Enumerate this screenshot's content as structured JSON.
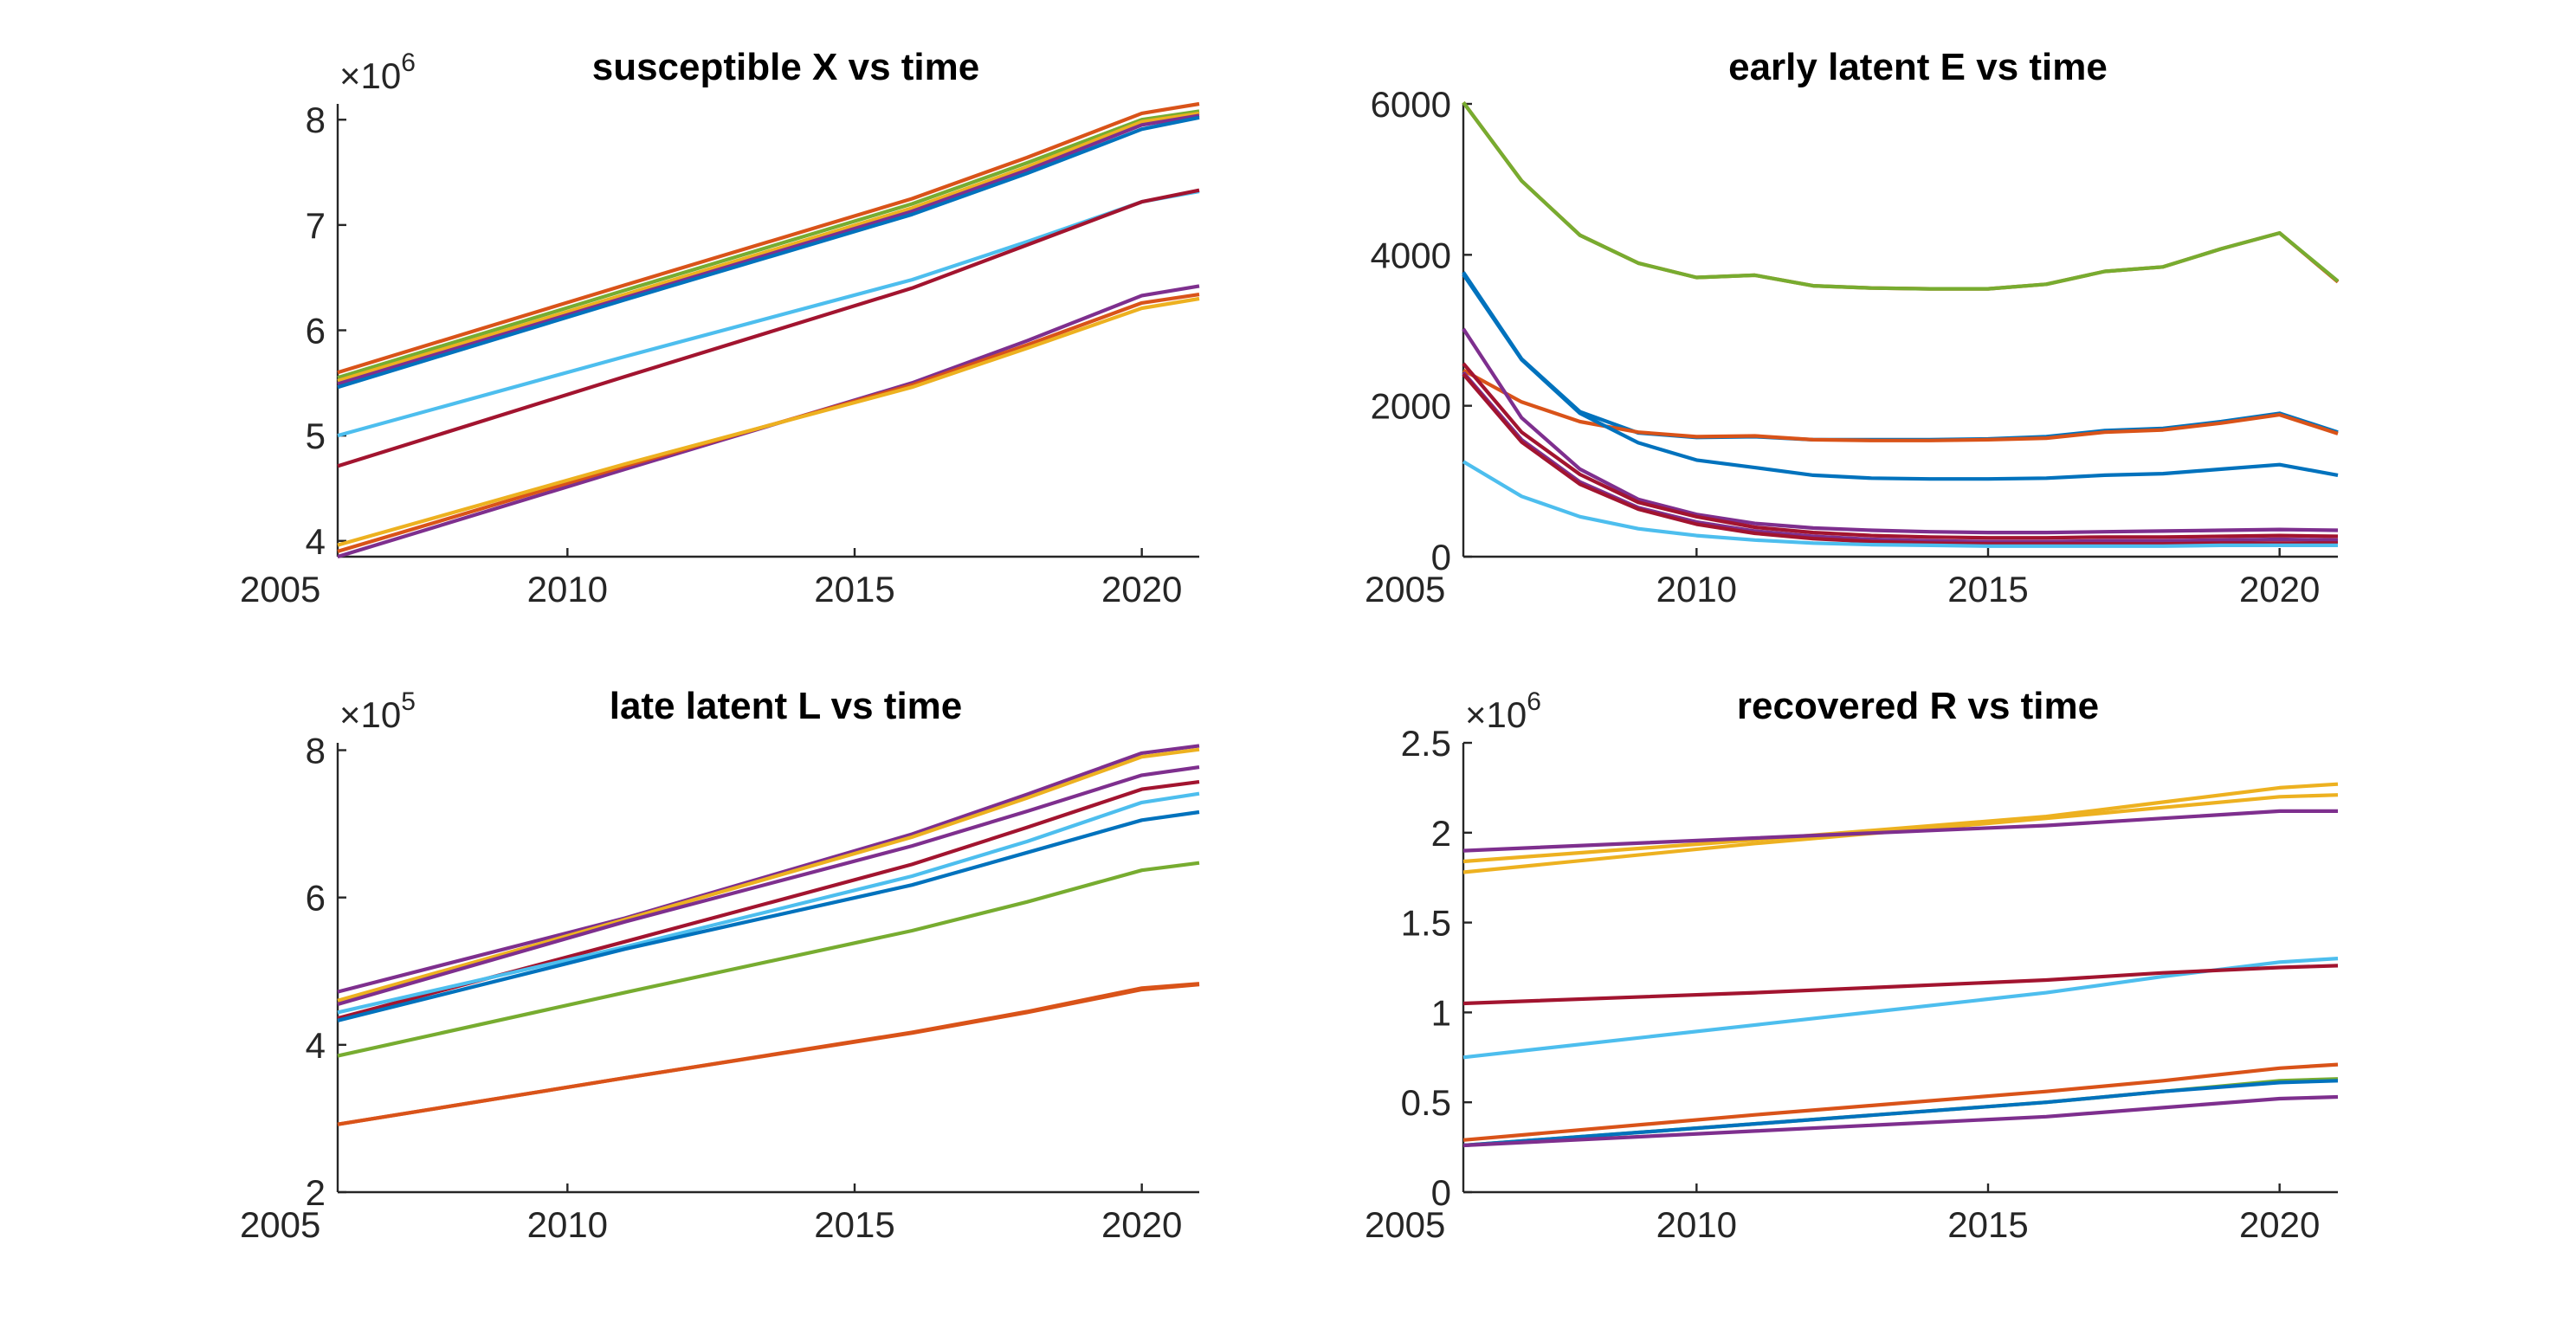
{
  "colors": {
    "blue": "#0072BD",
    "orange": "#D95319",
    "yellow": "#EDB120",
    "purple": "#7E2F8E",
    "green": "#77AC30",
    "cyan": "#4DBEEE",
    "maroon": "#A2142F",
    "axis": "#262626"
  },
  "chart_data": [
    {
      "type": "line",
      "title": "susceptible X vs time",
      "xlabel": "",
      "ylabel": "",
      "exponent_label": "×10",
      "exponent_power": "6",
      "xlim": [
        2006,
        2021
      ],
      "ylim": [
        3.85,
        8.15
      ],
      "xticks": [
        2005,
        2010,
        2015,
        2020
      ],
      "yticks": [
        4,
        5,
        6,
        7,
        8
      ],
      "xtick_labels": [
        "2005",
        "2010",
        "2015",
        "2020"
      ],
      "ytick_labels": [
        "4",
        "5",
        "6",
        "7",
        "8"
      ],
      "x": [
        2006,
        2011,
        2016,
        2018,
        2020,
        2021
      ],
      "series": [
        {
          "color": "orange",
          "values": [
            5.6,
            6.43,
            7.25,
            7.64,
            8.06,
            8.15
          ]
        },
        {
          "color": "green",
          "values": [
            5.55,
            6.38,
            7.2,
            7.59,
            8.0,
            8.08
          ]
        },
        {
          "color": "yellow",
          "values": [
            5.52,
            6.34,
            7.16,
            7.55,
            7.98,
            8.06
          ]
        },
        {
          "color": "purple",
          "values": [
            5.49,
            6.31,
            7.13,
            7.52,
            7.95,
            8.04
          ]
        },
        {
          "color": "blue",
          "values": [
            5.46,
            6.29,
            7.1,
            7.49,
            7.91,
            8.02
          ]
        },
        {
          "color": "cyan",
          "values": [
            5.0,
            5.75,
            6.48,
            6.84,
            7.22,
            7.32
          ]
        },
        {
          "color": "maroon",
          "values": [
            4.71,
            5.56,
            6.4,
            6.81,
            7.22,
            7.33
          ]
        },
        {
          "color": "purple",
          "values": [
            3.85,
            4.68,
            5.5,
            5.9,
            6.33,
            6.42
          ]
        },
        {
          "color": "orange",
          "values": [
            3.9,
            4.71,
            5.48,
            5.86,
            6.26,
            6.34
          ]
        },
        {
          "color": "yellow",
          "values": [
            3.96,
            4.73,
            5.46,
            5.83,
            6.21,
            6.3
          ]
        }
      ]
    },
    {
      "type": "line",
      "title": "early latent E vs time",
      "xlabel": "",
      "ylabel": "",
      "xlim": [
        2006,
        2021
      ],
      "ylim": [
        0,
        6000
      ],
      "xticks": [
        2005,
        2010,
        2015,
        2020
      ],
      "yticks": [
        0,
        2000,
        4000,
        6000
      ],
      "xtick_labels": [
        "2005",
        "2010",
        "2015",
        "2020"
      ],
      "ytick_labels": [
        "0",
        "2000",
        "4000",
        "6000"
      ],
      "x": [
        2006,
        2007,
        2008,
        2009,
        2010,
        2011,
        2012,
        2013,
        2014,
        2015,
        2016,
        2017,
        2018,
        2019,
        2020,
        2021
      ],
      "series": [
        {
          "color": "orange",
          "values": [
            6020,
            4980,
            4260,
            3890,
            3700,
            3730,
            3590,
            3560,
            3550,
            3550,
            3610,
            3780,
            3840,
            4080,
            4290,
            3640
          ]
        },
        {
          "color": "green",
          "values": [
            6020,
            4980,
            4260,
            3890,
            3700,
            3730,
            3590,
            3560,
            3550,
            3550,
            3610,
            3780,
            3840,
            4080,
            4290,
            3650
          ]
        },
        {
          "color": "blue",
          "values": [
            3770,
            2620,
            1920,
            1640,
            1580,
            1590,
            1550,
            1550,
            1550,
            1560,
            1590,
            1670,
            1700,
            1790,
            1900,
            1650
          ]
        },
        {
          "color": "orange",
          "values": [
            2470,
            2050,
            1790,
            1650,
            1590,
            1600,
            1550,
            1540,
            1540,
            1550,
            1570,
            1650,
            1680,
            1770,
            1880,
            1630
          ]
        },
        {
          "color": "blue",
          "values": [
            3740,
            2610,
            1900,
            1510,
            1280,
            1180,
            1080,
            1040,
            1030,
            1030,
            1040,
            1080,
            1100,
            1160,
            1220,
            1080
          ]
        },
        {
          "color": "purple",
          "values": [
            3020,
            1840,
            1160,
            760,
            560,
            440,
            380,
            350,
            330,
            320,
            320,
            330,
            340,
            350,
            360,
            350
          ]
        },
        {
          "color": "maroon",
          "values": [
            2560,
            1650,
            1090,
            720,
            530,
            390,
            320,
            280,
            260,
            250,
            250,
            260,
            260,
            270,
            280,
            270
          ]
        },
        {
          "color": "purple",
          "values": [
            2440,
            1550,
            990,
            650,
            460,
            340,
            270,
            230,
            210,
            200,
            200,
            210,
            210,
            220,
            230,
            220
          ]
        },
        {
          "color": "maroon",
          "values": [
            2420,
            1520,
            960,
            630,
            430,
            310,
            240,
            200,
            180,
            170,
            170,
            170,
            170,
            180,
            180,
            180
          ]
        },
        {
          "color": "cyan",
          "values": [
            1260,
            800,
            530,
            370,
            280,
            220,
            180,
            160,
            150,
            140,
            140,
            140,
            140,
            150,
            150,
            150
          ]
        }
      ]
    },
    {
      "type": "line",
      "title": "late latent L vs time",
      "xlabel": "",
      "ylabel": "",
      "exponent_label": "×10",
      "exponent_power": "5",
      "xlim": [
        2006,
        2021
      ],
      "ylim": [
        2,
        8.1
      ],
      "xticks": [
        2005,
        2010,
        2015,
        2020
      ],
      "yticks": [
        2,
        4,
        6,
        8
      ],
      "xtick_labels": [
        "2005",
        "2010",
        "2015",
        "2020"
      ],
      "ytick_labels": [
        "2",
        "4",
        "6",
        "8"
      ],
      "x": [
        2006,
        2011,
        2016,
        2018,
        2020,
        2021
      ],
      "series": [
        {
          "color": "purple",
          "values": [
            4.72,
            5.72,
            6.86,
            7.4,
            7.96,
            8.06
          ]
        },
        {
          "color": "yellow",
          "values": [
            4.6,
            5.7,
            6.82,
            7.35,
            7.91,
            8.01
          ]
        },
        {
          "color": "purple",
          "values": [
            4.55,
            5.67,
            6.7,
            7.17,
            7.66,
            7.77
          ]
        },
        {
          "color": "maroon",
          "values": [
            4.36,
            5.4,
            6.45,
            6.95,
            7.47,
            7.57
          ]
        },
        {
          "color": "cyan",
          "values": [
            4.44,
            5.33,
            6.29,
            6.76,
            7.29,
            7.41
          ]
        },
        {
          "color": "blue",
          "values": [
            4.33,
            5.3,
            6.17,
            6.61,
            7.05,
            7.16
          ]
        },
        {
          "color": "green",
          "values": [
            3.85,
            4.71,
            5.55,
            5.94,
            6.37,
            6.47
          ]
        },
        {
          "color": "orange",
          "values": [
            2.92,
            3.55,
            4.17,
            4.45,
            4.77,
            4.83
          ]
        },
        {
          "color": "orange",
          "values": [
            2.92,
            3.55,
            4.16,
            4.44,
            4.75,
            4.82
          ]
        }
      ]
    },
    {
      "type": "line",
      "title": "recovered R vs time",
      "xlabel": "",
      "ylabel": "",
      "exponent_label": "×10",
      "exponent_power": "6",
      "xlim": [
        2006,
        2021
      ],
      "ylim": [
        0,
        2.5
      ],
      "xticks": [
        2005,
        2010,
        2015,
        2020
      ],
      "yticks": [
        0,
        0.5,
        1,
        1.5,
        2,
        2.5
      ],
      "xtick_labels": [
        "2005",
        "2010",
        "2015",
        "2020"
      ],
      "ytick_labels": [
        "0",
        "0.5",
        "1",
        "1.5",
        "2",
        "2.5"
      ],
      "x": [
        2006,
        2011,
        2016,
        2018,
        2020,
        2021
      ],
      "series": [
        {
          "color": "yellow",
          "values": [
            1.84,
            1.96,
            2.09,
            2.17,
            2.25,
            2.27
          ]
        },
        {
          "color": "yellow",
          "values": [
            1.78,
            1.94,
            2.08,
            2.14,
            2.2,
            2.21
          ]
        },
        {
          "color": "purple",
          "values": [
            1.9,
            1.97,
            2.04,
            2.08,
            2.12,
            2.12
          ]
        },
        {
          "color": "cyan",
          "values": [
            0.75,
            0.93,
            1.11,
            1.2,
            1.28,
            1.3
          ]
        },
        {
          "color": "maroon",
          "values": [
            1.05,
            1.11,
            1.18,
            1.22,
            1.25,
            1.26
          ]
        },
        {
          "color": "orange",
          "values": [
            0.29,
            0.43,
            0.56,
            0.62,
            0.69,
            0.71
          ]
        },
        {
          "color": "green",
          "values": [
            0.26,
            0.38,
            0.5,
            0.56,
            0.62,
            0.63
          ]
        },
        {
          "color": "blue",
          "values": [
            0.26,
            0.38,
            0.5,
            0.56,
            0.61,
            0.62
          ]
        },
        {
          "color": "purple",
          "values": [
            0.26,
            0.34,
            0.42,
            0.47,
            0.52,
            0.53
          ]
        }
      ]
    }
  ]
}
